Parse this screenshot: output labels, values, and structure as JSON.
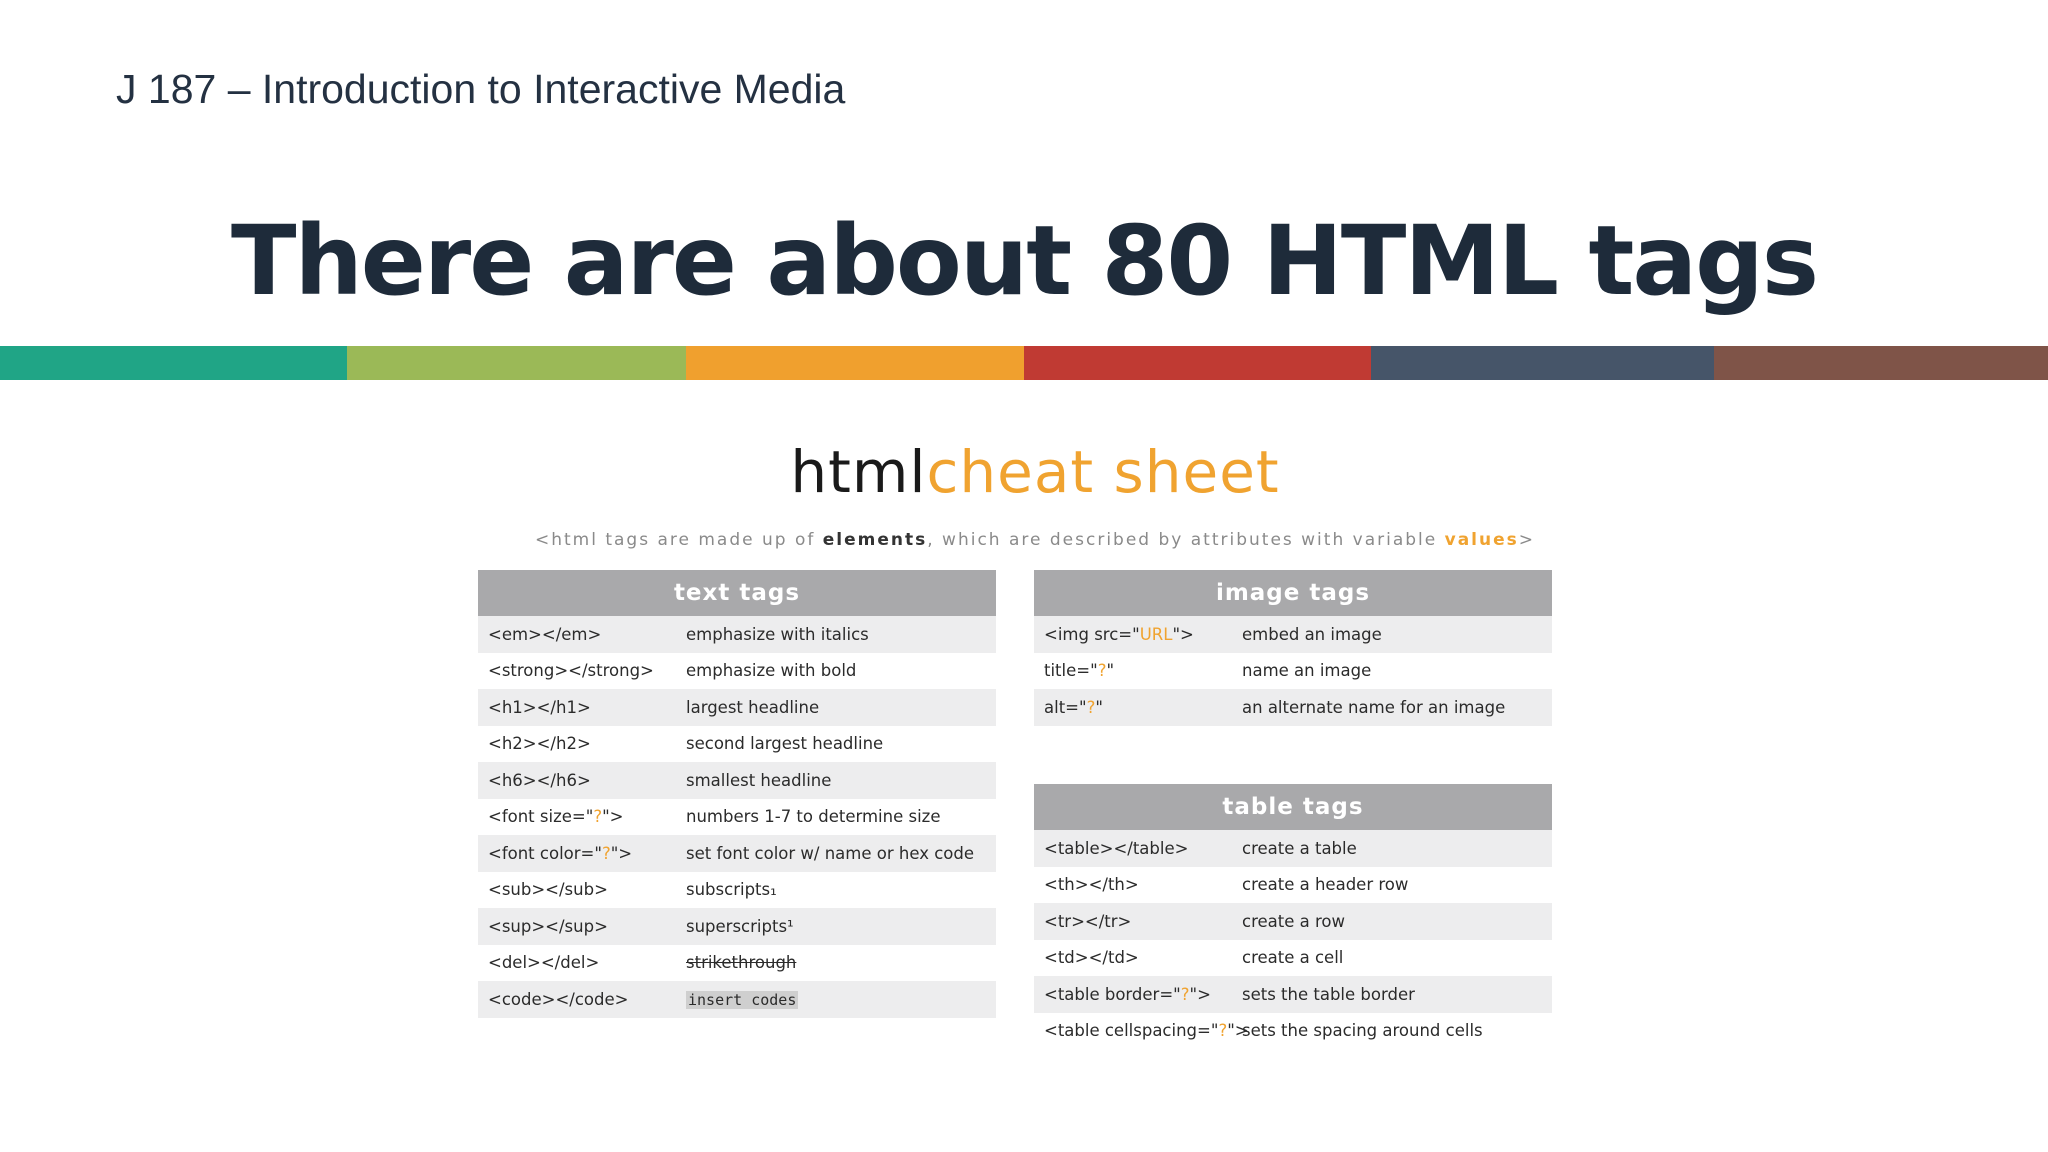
{
  "header": {
    "course": "J 187 – Introduction to Interactive Media",
    "title": "There are about 80 HTML tags"
  },
  "colors": {
    "bar": [
      "#20a586",
      "#9bb957",
      "#f0a02e",
      "#c03a33",
      "#465569",
      "#7f5448"
    ],
    "accent_orange": "#f0a330"
  },
  "cheatsheet": {
    "title_part1": "html",
    "title_part2": "cheat sheet",
    "subtitle_pre": "<html tags are made up of ",
    "subtitle_bold": "elements",
    "subtitle_mid": ", which are described by attributes with variable ",
    "subtitle_orange": "values",
    "subtitle_post": ">",
    "text_tags": {
      "header": "text tags",
      "rows": [
        {
          "tag": "<em></em>",
          "desc": "emphasize with italics"
        },
        {
          "tag": "<strong></strong>",
          "desc": "emphasize with bold"
        },
        {
          "tag": "<h1></h1>",
          "desc": "largest headline"
        },
        {
          "tag": "<h2></h2>",
          "desc": "second largest headline"
        },
        {
          "tag": "<h6></h6>",
          "desc": "smallest headline"
        },
        {
          "tag": "<font size=\"?\">",
          "desc": "numbers 1-7 to determine size"
        },
        {
          "tag": "<font color=\"?\">",
          "desc": "set font color w/ name or hex code"
        },
        {
          "tag": "<sub></sub>",
          "desc": "subscripts₁"
        },
        {
          "tag": "<sup></sup>",
          "desc": "superscripts¹"
        },
        {
          "tag": "<del></del>",
          "desc": "strikethrough"
        },
        {
          "tag": "<code></code>",
          "desc": "insert codes"
        }
      ]
    },
    "image_tags": {
      "header": "image tags",
      "rows": [
        {
          "tag": "<img src=\"URL\">",
          "desc": "embed an image"
        },
        {
          "tag": "title=\"?\"",
          "desc": "name an image"
        },
        {
          "tag": "alt=\"?\"",
          "desc": "an alternate name for an image"
        }
      ]
    },
    "table_tags": {
      "header": "table tags",
      "rows": [
        {
          "tag": "<table></table>",
          "desc": "create a table"
        },
        {
          "tag": "<th></th>",
          "desc": "create a header row"
        },
        {
          "tag": "<tr></tr>",
          "desc": "create a row"
        },
        {
          "tag": "<td></td>",
          "desc": "create a cell"
        },
        {
          "tag": "<table border=\"?\">",
          "desc": "sets the table border"
        },
        {
          "tag": "<table cellspacing=\"?\">",
          "desc": "sets the spacing around cells"
        }
      ]
    }
  }
}
